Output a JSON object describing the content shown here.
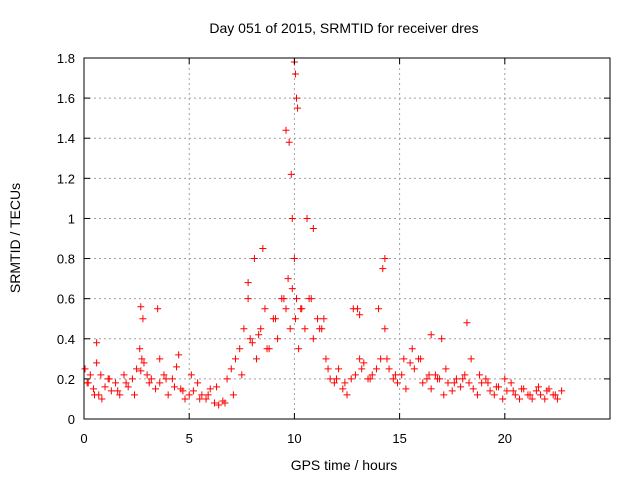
{
  "chart_data": {
    "type": "scatter",
    "title": "Day 051 of 2015, SRMTID for receiver dres",
    "xlabel": "GPS time / hours",
    "ylabel": "SRMTID / TECUs",
    "xlim": [
      0,
      25
    ],
    "ylim": [
      0,
      1.8
    ],
    "grid": true,
    "marker": "+",
    "color": "#ff0000",
    "x_ticks": [
      0,
      5,
      10,
      15,
      20
    ],
    "x_tick_labels": [
      "0",
      "5",
      "10",
      "15",
      "20"
    ],
    "y_ticks": [
      0,
      0.2,
      0.4,
      0.6,
      0.8,
      1.0,
      1.2,
      1.4,
      1.6,
      1.8
    ],
    "y_tick_labels": [
      "0",
      "0.2",
      "0.4",
      "0.6",
      "0.8",
      "1",
      "1.2",
      "1.4",
      "1.6",
      "1.8"
    ],
    "series": [
      {
        "name": "SRMTID",
        "x": [
          0.05,
          0.15,
          0.3,
          0.45,
          0.6,
          0.7,
          0.85,
          1.0,
          1.15,
          1.3,
          1.5,
          1.7,
          1.9,
          2.1,
          2.3,
          2.5,
          2.65,
          2.75,
          2.85,
          3.0,
          3.2,
          3.4,
          3.6,
          3.8,
          4.0,
          4.2,
          4.4,
          4.6,
          4.8,
          5.0,
          5.2,
          5.4,
          5.6,
          5.8,
          6.0,
          6.2,
          6.4,
          6.6,
          6.8,
          7.0,
          7.2,
          7.4,
          7.6,
          7.8,
          8.0,
          8.2,
          8.4,
          8.6,
          8.8,
          9.0,
          9.2,
          9.4,
          9.6,
          9.7,
          9.8,
          9.9,
          10.0,
          10.05,
          10.1,
          10.2,
          10.35,
          10.5,
          10.7,
          10.9,
          11.1,
          11.3,
          11.5,
          11.7,
          11.9,
          12.1,
          12.3,
          12.5,
          12.7,
          12.9,
          13.1,
          13.3,
          13.5,
          13.7,
          13.9,
          14.1,
          14.3,
          14.5,
          14.7,
          14.9,
          15.1,
          15.3,
          15.5,
          15.7,
          15.9,
          16.1,
          16.3,
          16.5,
          16.7,
          16.9,
          17.1,
          17.3,
          17.5,
          17.7,
          17.9,
          18.1,
          18.3,
          18.5,
          18.7,
          18.9,
          19.1,
          19.3,
          19.5,
          19.7,
          19.9,
          20.1,
          20.3,
          20.5,
          20.7,
          20.9,
          21.1,
          21.3,
          21.5,
          21.7,
          21.9,
          22.1,
          22.3,
          22.5,
          22.7,
          0.2,
          0.5,
          0.8,
          1.2,
          1.6,
          2.0,
          2.4,
          2.7,
          3.1,
          3.5,
          3.9,
          4.3,
          4.7,
          5.1,
          5.5,
          5.9,
          6.3,
          6.7,
          7.1,
          7.5,
          7.9,
          8.3,
          8.7,
          9.1,
          9.5,
          9.9,
          10.3,
          10.8,
          11.2,
          11.6,
          12.0,
          12.4,
          12.8,
          13.2,
          13.6,
          14.0,
          14.4,
          14.8,
          15.2,
          15.6,
          16.0,
          16.4,
          16.8,
          17.2,
          17.6,
          18.0,
          18.4,
          18.8,
          19.2,
          19.6,
          20.0,
          20.4,
          20.8,
          21.2,
          21.6,
          22.0,
          22.4,
          9.6,
          9.75,
          9.85,
          10.0,
          10.05,
          10.1,
          10.15,
          10.6,
          10.9,
          11.4,
          8.5,
          8.1,
          7.8,
          14.3,
          14.2,
          13.0,
          13.1,
          2.7,
          2.8,
          0.6,
          18.2,
          16.5,
          17.0,
          4.5,
          3.6
        ],
        "y": [
          0.25,
          0.18,
          0.22,
          0.15,
          0.28,
          0.12,
          0.1,
          0.16,
          0.2,
          0.14,
          0.18,
          0.12,
          0.22,
          0.16,
          0.2,
          0.25,
          0.35,
          0.3,
          0.28,
          0.22,
          0.2,
          0.15,
          0.18,
          0.22,
          0.12,
          0.2,
          0.26,
          0.15,
          0.1,
          0.12,
          0.14,
          0.18,
          0.12,
          0.1,
          0.15,
          0.08,
          0.07,
          0.09,
          0.2,
          0.25,
          0.3,
          0.35,
          0.45,
          0.6,
          0.38,
          0.3,
          0.45,
          0.55,
          0.35,
          0.5,
          0.4,
          0.6,
          0.55,
          0.7,
          0.45,
          0.65,
          0.8,
          0.5,
          0.6,
          0.35,
          0.55,
          0.45,
          0.6,
          0.4,
          0.5,
          0.45,
          0.3,
          0.2,
          0.18,
          0.25,
          0.15,
          0.12,
          0.2,
          0.22,
          0.3,
          0.28,
          0.2,
          0.22,
          0.25,
          0.3,
          0.45,
          0.25,
          0.2,
          0.18,
          0.22,
          0.15,
          0.28,
          0.25,
          0.3,
          0.18,
          0.2,
          0.15,
          0.22,
          0.2,
          0.12,
          0.18,
          0.14,
          0.2,
          0.16,
          0.22,
          0.18,
          0.15,
          0.12,
          0.18,
          0.2,
          0.14,
          0.12,
          0.16,
          0.1,
          0.14,
          0.18,
          0.12,
          0.1,
          0.15,
          0.12,
          0.1,
          0.14,
          0.12,
          0.1,
          0.15,
          0.12,
          0.1,
          0.14,
          0.18,
          0.12,
          0.22,
          0.2,
          0.14,
          0.18,
          0.12,
          0.24,
          0.18,
          0.55,
          0.2,
          0.16,
          0.14,
          0.22,
          0.1,
          0.12,
          0.16,
          0.08,
          0.12,
          0.22,
          0.4,
          0.42,
          0.35,
          0.5,
          0.6,
          1.0,
          0.55,
          0.6,
          0.45,
          0.25,
          0.2,
          0.18,
          0.55,
          0.25,
          0.2,
          0.55,
          0.3,
          0.22,
          0.3,
          0.35,
          0.3,
          0.22,
          0.2,
          0.25,
          0.18,
          0.2,
          0.3,
          0.22,
          0.18,
          0.16,
          0.2,
          0.14,
          0.15,
          0.12,
          0.16,
          0.14,
          0.12,
          1.44,
          1.38,
          1.22,
          1.78,
          1.72,
          1.6,
          1.55,
          1.0,
          0.95,
          0.5,
          0.85,
          0.8,
          0.68,
          0.8,
          0.75,
          0.55,
          0.52,
          0.56,
          0.5,
          0.38,
          0.48,
          0.42,
          0.4,
          0.32,
          0.3
        ]
      }
    ]
  }
}
